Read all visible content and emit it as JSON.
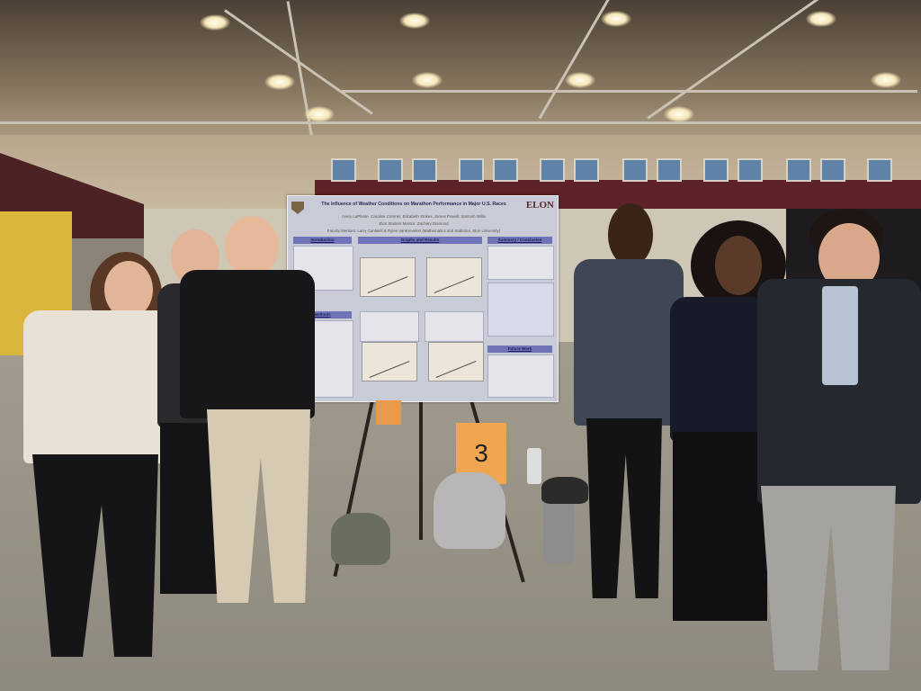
{
  "scene": {
    "description_colors": {
      "ceiling": "#8b7a62",
      "stands": "#5e2326",
      "floor": "#9a948a",
      "poster_header": "#6f73b8",
      "sign": "#f0a650"
    }
  },
  "poster": {
    "title": "The Influence of Weather Conditions on Marathon Performance in Major U.S. Races",
    "authors": "Avery LaPlante, Caroline Crenner, Elizabeth Stokes, James Powell, Santosh Willis",
    "student_mentor": "Elon Student Mentor: Zachary Diamond",
    "faculty_mentors": "Faculty Mentors: Larry Cantwell & Rylee VanKrevelen (Mathematics and Statistics, Elon University)",
    "logo": "ELON",
    "sections": {
      "introduction": "Introduction",
      "graphs": "Graphs and Results",
      "summary": "Summary / Conclusion",
      "methods": "Methods",
      "future": "Future Work"
    }
  },
  "sign": {
    "number": "3"
  }
}
